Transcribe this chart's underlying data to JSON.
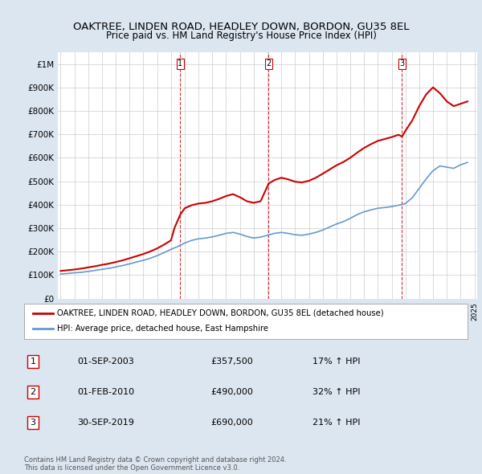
{
  "title": "OAKTREE, LINDEN ROAD, HEADLEY DOWN, BORDON, GU35 8EL",
  "subtitle": "Price paid vs. HM Land Registry's House Price Index (HPI)",
  "legend_property": "OAKTREE, LINDEN ROAD, HEADLEY DOWN, BORDON, GU35 8EL (detached house)",
  "legend_hpi": "HPI: Average price, detached house, East Hampshire",
  "transactions": [
    {
      "label": "1",
      "date": "01-SEP-2003",
      "price": 357500,
      "pct": "17%",
      "dir": "↑",
      "year": 2003.67
    },
    {
      "label": "2",
      "date": "01-FEB-2010",
      "price": 490000,
      "pct": "32%",
      "dir": "↑",
      "year": 2010.08
    },
    {
      "label": "3",
      "date": "30-SEP-2019",
      "price": 690000,
      "pct": "21%",
      "dir": "↑",
      "year": 2019.75
    }
  ],
  "property_color": "#cc0000",
  "hpi_color": "#6699cc",
  "vline_color": "#cc0000",
  "background_color": "#dce6f1",
  "plot_bg": "#ffffff",
  "footer": "Contains HM Land Registry data © Crown copyright and database right 2024.\nThis data is licensed under the Open Government Licence v3.0.",
  "ylim": [
    0,
    1050000
  ],
  "yticks": [
    0,
    100000,
    200000,
    300000,
    400000,
    500000,
    600000,
    700000,
    800000,
    900000,
    1000000
  ],
  "ytick_labels": [
    "£0",
    "£100K",
    "£200K",
    "£300K",
    "£400K",
    "£500K",
    "£600K",
    "£700K",
    "£800K",
    "£900K",
    "£1M"
  ],
  "hpi_years": [
    1995,
    1995.5,
    1996,
    1996.5,
    1997,
    1997.5,
    1998,
    1998.5,
    1999,
    1999.5,
    2000,
    2000.5,
    2001,
    2001.5,
    2002,
    2002.5,
    2003,
    2003.5,
    2004,
    2004.5,
    2005,
    2005.5,
    2006,
    2006.5,
    2007,
    2007.5,
    2008,
    2008.5,
    2009,
    2009.5,
    2010,
    2010.5,
    2011,
    2011.5,
    2012,
    2012.5,
    2013,
    2013.5,
    2014,
    2014.5,
    2015,
    2015.5,
    2016,
    2016.5,
    2017,
    2017.5,
    2018,
    2018.5,
    2019,
    2019.5,
    2020,
    2020.5,
    2021,
    2021.5,
    2022,
    2022.5,
    2023,
    2023.5,
    2024,
    2024.5
  ],
  "hpi_values": [
    105000,
    107000,
    110000,
    112000,
    116000,
    120000,
    125000,
    129000,
    135000,
    141000,
    148000,
    156000,
    163000,
    172000,
    183000,
    196000,
    210000,
    222000,
    237000,
    248000,
    255000,
    258000,
    263000,
    270000,
    278000,
    282000,
    275000,
    265000,
    258000,
    262000,
    270000,
    278000,
    282000,
    278000,
    272000,
    270000,
    275000,
    282000,
    292000,
    305000,
    318000,
    328000,
    342000,
    358000,
    370000,
    378000,
    385000,
    388000,
    392000,
    398000,
    405000,
    430000,
    470000,
    510000,
    545000,
    565000,
    560000,
    555000,
    570000,
    580000
  ],
  "prop_years": [
    1995,
    1995.5,
    1996,
    1996.5,
    1997,
    1997.5,
    1998,
    1998.5,
    1999,
    1999.5,
    2000,
    2000.5,
    2001,
    2001.5,
    2002,
    2002.5,
    2003,
    2003.25,
    2003.67,
    2004,
    2004.5,
    2005,
    2005.5,
    2006,
    2006.5,
    2007,
    2007.5,
    2008,
    2008.5,
    2009,
    2009.5,
    2010.08,
    2010.5,
    2011,
    2011.5,
    2012,
    2012.5,
    2013,
    2013.5,
    2014,
    2014.5,
    2015,
    2015.5,
    2016,
    2016.5,
    2017,
    2017.5,
    2018,
    2018.5,
    2019,
    2019.5,
    2019.75,
    2020,
    2020.5,
    2021,
    2021.5,
    2022,
    2022.5,
    2023,
    2023.5,
    2024,
    2024.5
  ],
  "prop_values": [
    118000,
    121000,
    124000,
    128000,
    133000,
    138000,
    144000,
    149000,
    156000,
    163000,
    172000,
    181000,
    190000,
    201000,
    214000,
    230000,
    248000,
    300000,
    357500,
    385000,
    398000,
    405000,
    408000,
    415000,
    425000,
    437000,
    445000,
    432000,
    415000,
    408000,
    415000,
    490000,
    505000,
    515000,
    508000,
    498000,
    495000,
    502000,
    515000,
    532000,
    550000,
    568000,
    582000,
    600000,
    622000,
    642000,
    658000,
    672000,
    680000,
    688000,
    698000,
    690000,
    715000,
    760000,
    820000,
    870000,
    900000,
    875000,
    840000,
    820000,
    830000,
    840000
  ]
}
